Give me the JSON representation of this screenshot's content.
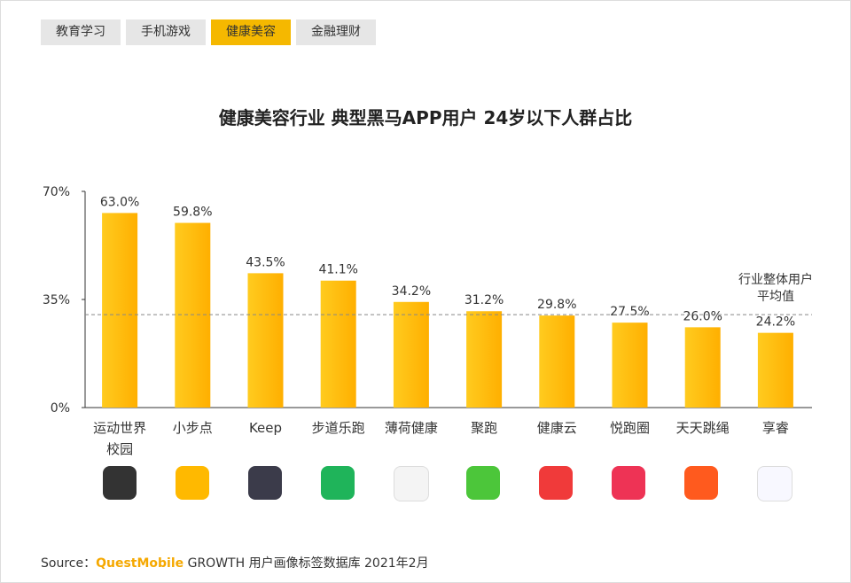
{
  "tabs": {
    "items": [
      "教育学习",
      "手机游戏",
      "健康美容",
      "金融理财"
    ],
    "active": 2
  },
  "chart_data": {
    "type": "bar",
    "title": "健康美容行业 典型黑马APP用户 24岁以下人群占比",
    "categories": [
      "运动世界校园",
      "小步点",
      "Keep",
      "步道乐跑",
      "薄荷健康",
      "聚跑",
      "健康云",
      "悦跑圈",
      "天天跳绳",
      "享睿"
    ],
    "values": [
      63.0,
      59.8,
      43.5,
      41.1,
      34.2,
      31.2,
      29.8,
      27.5,
      26.0,
      24.2
    ],
    "value_labels": [
      "63.0%",
      "59.8%",
      "43.5%",
      "41.1%",
      "34.2%",
      "31.2%",
      "29.8%",
      "27.5%",
      "26.0%",
      "24.2%"
    ],
    "color": "#ffc000",
    "ylim": [
      0,
      70
    ],
    "yticks": [
      {
        "value": 0,
        "label": "0%"
      },
      {
        "value": 35,
        "label": "35%"
      },
      {
        "value": 70,
        "label": "70%"
      }
    ],
    "reference_line": {
      "value": 30.1,
      "label": "行业整体用户平均值"
    }
  },
  "source": {
    "prefix": "Source：",
    "brand": "QuestMobile",
    "text": "GROWTH 用户画像标签数据库 2021年2月"
  }
}
